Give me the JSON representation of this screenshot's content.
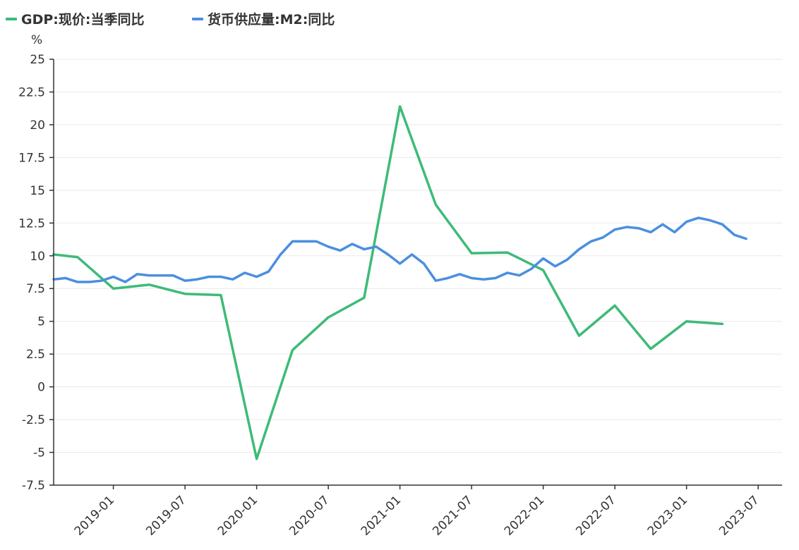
{
  "chart_data": {
    "type": "line",
    "ylabel": "%",
    "ylim": [
      -7.5,
      25
    ],
    "yticks": [
      25,
      22.5,
      20,
      17.5,
      15,
      12.5,
      10,
      7.5,
      5,
      2.5,
      0,
      -2.5,
      -5,
      -7.5
    ],
    "ytick_labels": [
      "25",
      "22.5",
      "20",
      "17.5",
      "15",
      "12.5",
      "10",
      "7.5",
      "5",
      "2.5",
      "0",
      "-2.5",
      "-5",
      "-7.5"
    ],
    "xlim": [
      "2018-08",
      "2023-09"
    ],
    "xticks": [
      "2019-01",
      "2019-07",
      "2020-01",
      "2020-07",
      "2021-01",
      "2021-07",
      "2022-01",
      "2022-07",
      "2023-01",
      "2023-07"
    ],
    "grid": true,
    "legend_position": "top-left",
    "series": [
      {
        "name": "GDP:现价:当季同比",
        "color": "#3dbb78",
        "points": [
          [
            "2018-08",
            10.1
          ],
          [
            "2018-10",
            9.9
          ],
          [
            "2019-01",
            7.5
          ],
          [
            "2019-04",
            7.8
          ],
          [
            "2019-07",
            7.1
          ],
          [
            "2019-10",
            7.0
          ],
          [
            "2020-01",
            -5.5
          ],
          [
            "2020-04",
            2.8
          ],
          [
            "2020-07",
            5.3
          ],
          [
            "2020-10",
            6.8
          ],
          [
            "2021-01",
            21.4
          ],
          [
            "2021-04",
            13.9
          ],
          [
            "2021-07",
            10.2
          ],
          [
            "2021-10",
            10.25
          ],
          [
            "2022-01",
            8.9
          ],
          [
            "2022-04",
            3.9
          ],
          [
            "2022-07",
            6.2
          ],
          [
            "2022-10",
            2.9
          ],
          [
            "2023-01",
            5.0
          ],
          [
            "2023-04",
            4.8
          ]
        ]
      },
      {
        "name": "货币供应量:M2:同比",
        "color": "#4a8fe0",
        "points": [
          [
            "2018-08",
            8.2
          ],
          [
            "2018-09",
            8.3
          ],
          [
            "2018-10",
            8.0
          ],
          [
            "2018-11",
            8.0
          ],
          [
            "2018-12",
            8.1
          ],
          [
            "2019-01",
            8.4
          ],
          [
            "2019-02",
            8.0
          ],
          [
            "2019-03",
            8.6
          ],
          [
            "2019-04",
            8.5
          ],
          [
            "2019-05",
            8.5
          ],
          [
            "2019-06",
            8.5
          ],
          [
            "2019-07",
            8.1
          ],
          [
            "2019-08",
            8.2
          ],
          [
            "2019-09",
            8.4
          ],
          [
            "2019-10",
            8.4
          ],
          [
            "2019-11",
            8.2
          ],
          [
            "2019-12",
            8.7
          ],
          [
            "2020-01",
            8.4
          ],
          [
            "2020-02",
            8.8
          ],
          [
            "2020-03",
            10.1
          ],
          [
            "2020-04",
            11.1
          ],
          [
            "2020-05",
            11.1
          ],
          [
            "2020-06",
            11.1
          ],
          [
            "2020-07",
            10.7
          ],
          [
            "2020-08",
            10.4
          ],
          [
            "2020-09",
            10.9
          ],
          [
            "2020-10",
            10.5
          ],
          [
            "2020-11",
            10.7
          ],
          [
            "2020-12",
            10.1
          ],
          [
            "2021-01",
            9.4
          ],
          [
            "2021-02",
            10.1
          ],
          [
            "2021-03",
            9.4
          ],
          [
            "2021-04",
            8.1
          ],
          [
            "2021-05",
            8.3
          ],
          [
            "2021-06",
            8.6
          ],
          [
            "2021-07",
            8.3
          ],
          [
            "2021-08",
            8.2
          ],
          [
            "2021-09",
            8.3
          ],
          [
            "2021-10",
            8.7
          ],
          [
            "2021-11",
            8.5
          ],
          [
            "2021-12",
            9.0
          ],
          [
            "2022-01",
            9.8
          ],
          [
            "2022-02",
            9.2
          ],
          [
            "2022-03",
            9.7
          ],
          [
            "2022-04",
            10.5
          ],
          [
            "2022-05",
            11.1
          ],
          [
            "2022-06",
            11.4
          ],
          [
            "2022-07",
            12.0
          ],
          [
            "2022-08",
            12.2
          ],
          [
            "2022-09",
            12.1
          ],
          [
            "2022-10",
            11.8
          ],
          [
            "2022-11",
            12.4
          ],
          [
            "2022-12",
            11.8
          ],
          [
            "2023-01",
            12.6
          ],
          [
            "2023-02",
            12.9
          ],
          [
            "2023-03",
            12.7
          ],
          [
            "2023-04",
            12.4
          ],
          [
            "2023-05",
            11.6
          ],
          [
            "2023-06",
            11.3
          ]
        ]
      }
    ]
  }
}
